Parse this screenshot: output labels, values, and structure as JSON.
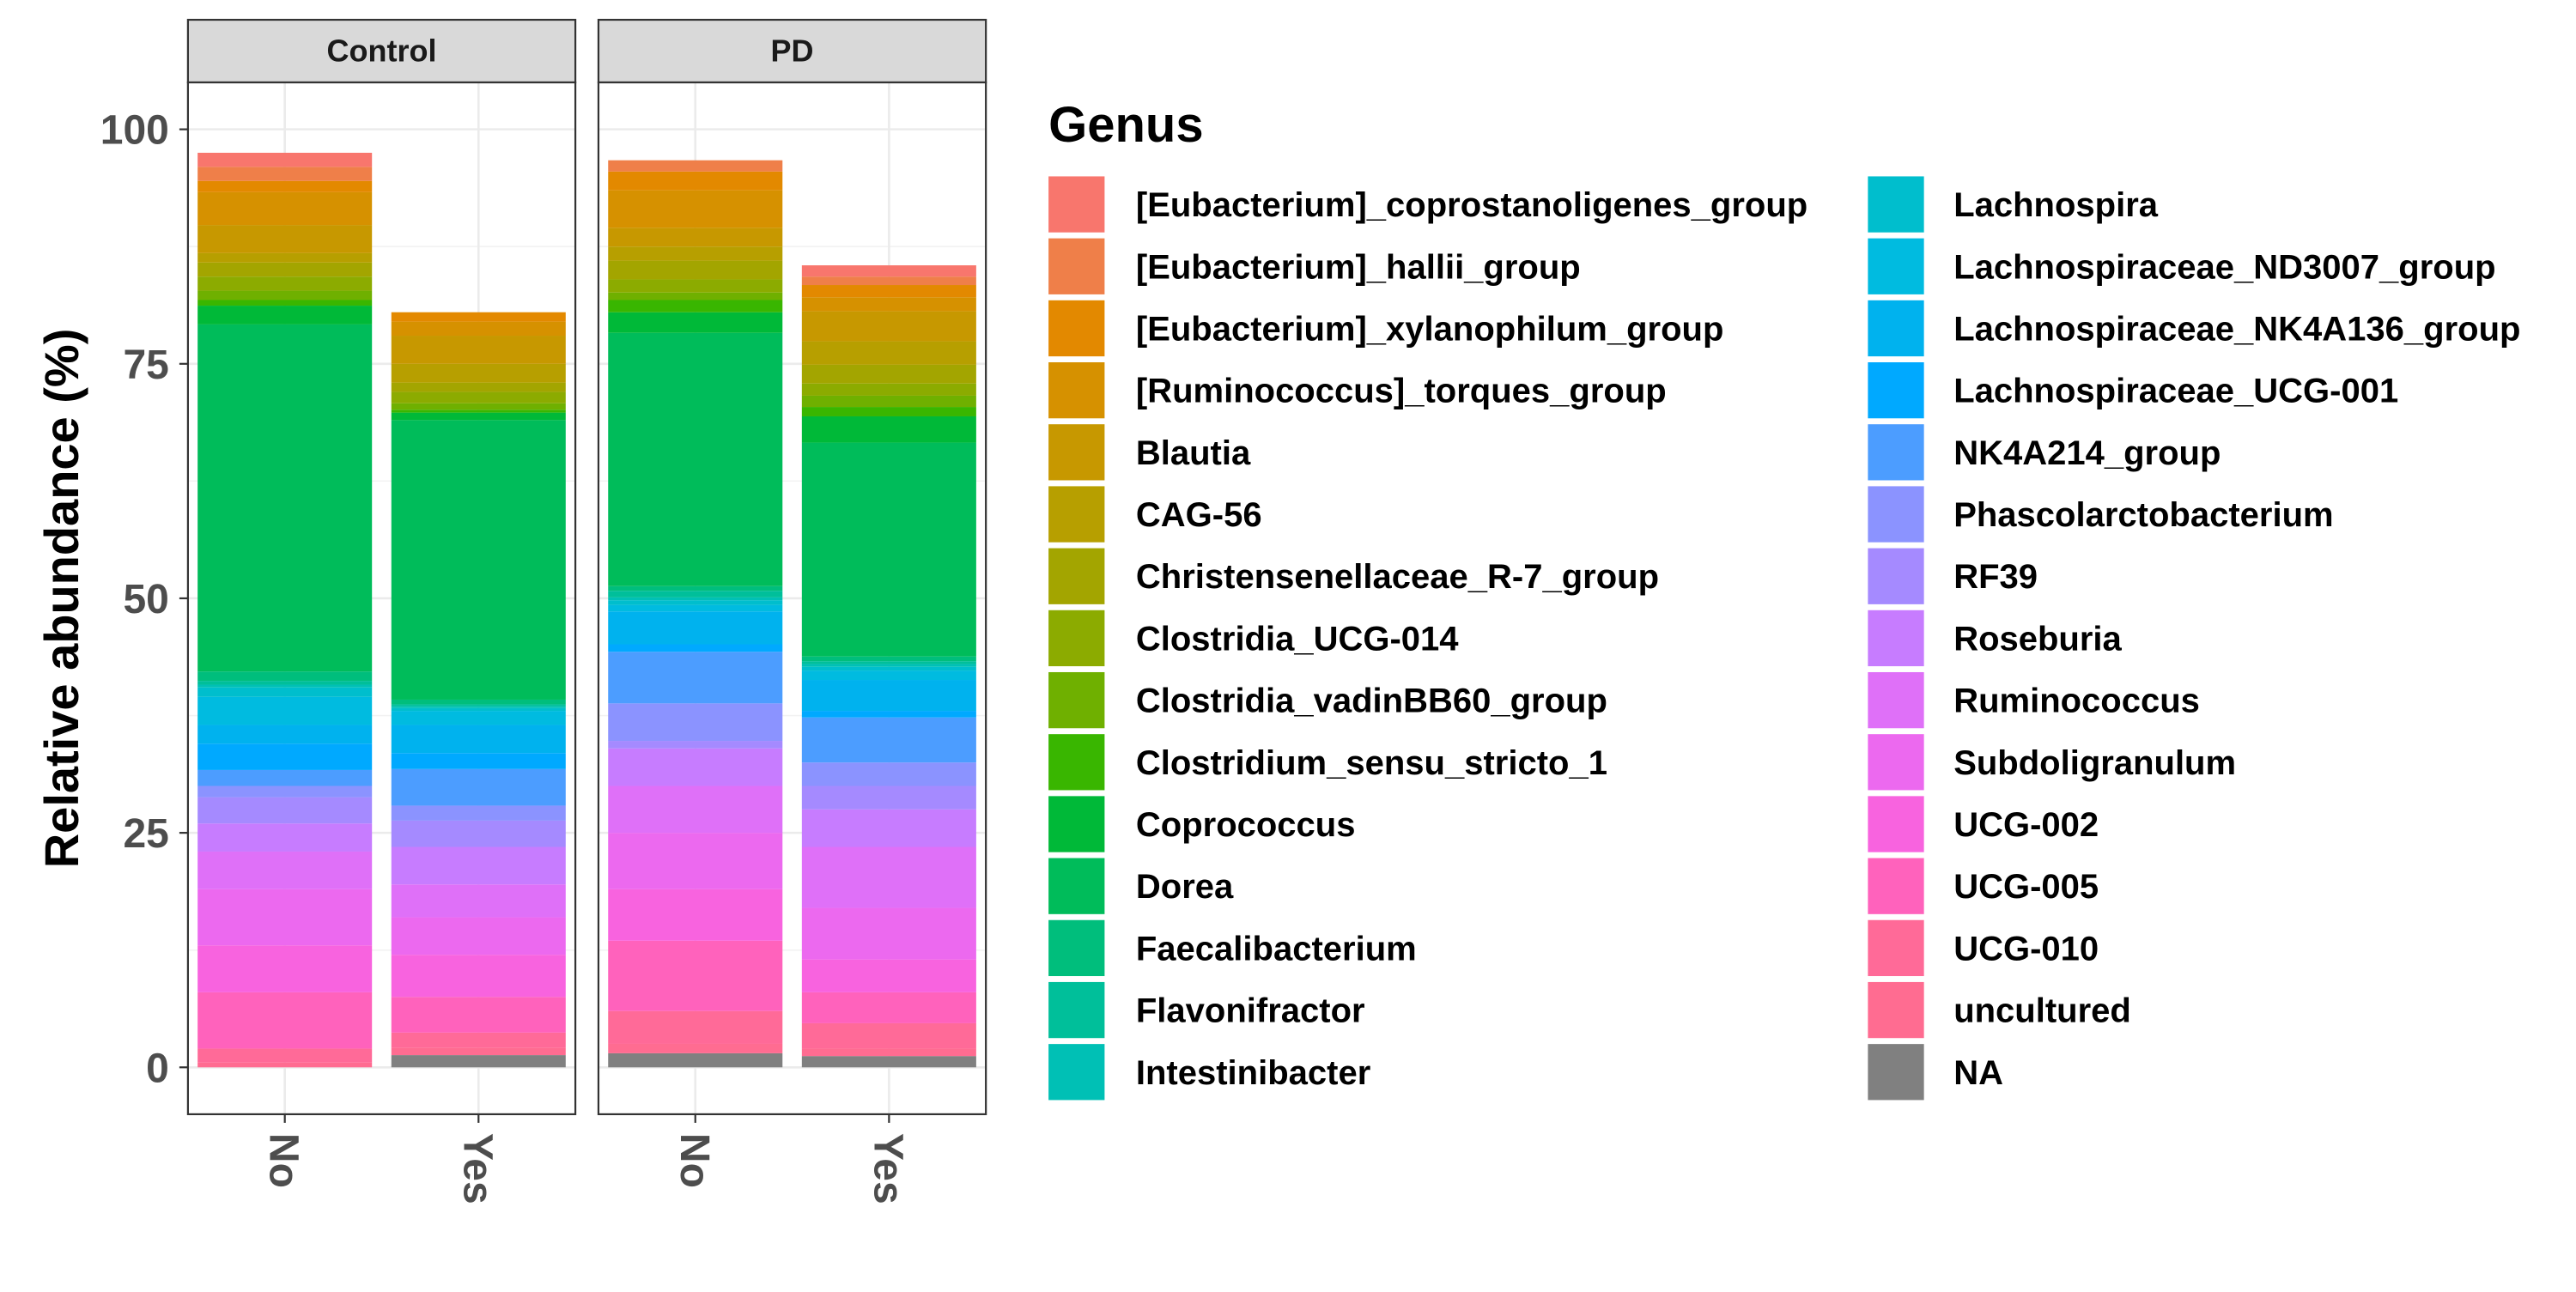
{
  "chart_data": {
    "type": "bar",
    "stacked": true,
    "ylabel": "Relative abundance (%)",
    "xlabel": "",
    "ylim": [
      0,
      105
    ],
    "yticks": [
      0,
      25,
      50,
      75,
      100
    ],
    "grid": true,
    "legend_position": "right",
    "legend_title": "Genus",
    "categories": [
      "No",
      "Yes"
    ],
    "facets": [
      {
        "label": "Control",
        "bars": [
          {
            "category": "No",
            "segments": [
              {
                "genus": "NA",
                "value": 0
              },
              {
                "genus": "uncultured",
                "value": 0.5
              },
              {
                "genus": "UCG-010",
                "value": 1.5
              },
              {
                "genus": "UCG-005",
                "value": 6.0
              },
              {
                "genus": "UCG-002",
                "value": 5.0
              },
              {
                "genus": "Subdoligranulum",
                "value": 6.0
              },
              {
                "genus": "Ruminococcus",
                "value": 4.0
              },
              {
                "genus": "Roseburia",
                "value": 3.0
              },
              {
                "genus": "RF39",
                "value": 2.8
              },
              {
                "genus": "Phascolarctobacterium",
                "value": 1.2
              },
              {
                "genus": "NK4A214_group",
                "value": 1.7
              },
              {
                "genus": "Lachnospiraceae_UCG-001",
                "value": 2.8
              },
              {
                "genus": "Lachnospiraceae_NK4A136_group",
                "value": 2.0
              },
              {
                "genus": "Lachnospiraceae_ND3007_group",
                "value": 3.0
              },
              {
                "genus": "Lachnospira",
                "value": 1.0
              },
              {
                "genus": "Intestinibacter",
                "value": 0.3
              },
              {
                "genus": "Flavonifractor",
                "value": 0.4
              },
              {
                "genus": "Faecalibacterium",
                "value": 1.0
              },
              {
                "genus": "Dorea",
                "value": 37.0
              },
              {
                "genus": "Coprococcus",
                "value": 2.0
              },
              {
                "genus": "Clostridium_sensu_stricto_1",
                "value": 0.6
              },
              {
                "genus": "Clostridia_vadinBB60_group",
                "value": 1.0
              },
              {
                "genus": "Clostridia_UCG-014",
                "value": 1.5
              },
              {
                "genus": "Christensenellaceae_R-7_group",
                "value": 1.5
              },
              {
                "genus": "CAG-56",
                "value": 1.0
              },
              {
                "genus": "Blautia",
                "value": 3.0
              },
              {
                "genus": "[Ruminococcus]_torques_group",
                "value": 3.5
              },
              {
                "genus": "[Eubacterium]_xylanophilum_group",
                "value": 1.2
              },
              {
                "genus": "[Eubacterium]_hallii_group",
                "value": 1.5
              },
              {
                "genus": "[Eubacterium]_coprostanoligenes_group",
                "value": 1.5
              }
            ]
          },
          {
            "category": "Yes",
            "segments": [
              {
                "genus": "NA",
                "value": 1.3
              },
              {
                "genus": "uncultured",
                "value": 0.8
              },
              {
                "genus": "UCG-010",
                "value": 1.6
              },
              {
                "genus": "UCG-005",
                "value": 3.8
              },
              {
                "genus": "UCG-002",
                "value": 4.5
              },
              {
                "genus": "Subdoligranulum",
                "value": 4.0
              },
              {
                "genus": "Ruminococcus",
                "value": 3.5
              },
              {
                "genus": "Roseburia",
                "value": 4.0
              },
              {
                "genus": "RF39",
                "value": 2.8
              },
              {
                "genus": "Phascolarctobacterium",
                "value": 1.6
              },
              {
                "genus": "NK4A214_group",
                "value": 3.9
              },
              {
                "genus": "Lachnospiraceae_UCG-001",
                "value": 1.7
              },
              {
                "genus": "Lachnospiraceae_NK4A136_group",
                "value": 3.0
              },
              {
                "genus": "Lachnospiraceae_ND3007_group",
                "value": 1.5
              },
              {
                "genus": "Lachnospira",
                "value": 0.3
              },
              {
                "genus": "Intestinibacter",
                "value": 0.2
              },
              {
                "genus": "Flavonifractor",
                "value": 0.2
              },
              {
                "genus": "Faecalibacterium",
                "value": 0.5
              },
              {
                "genus": "Dorea",
                "value": 29.8
              },
              {
                "genus": "Coprococcus",
                "value": 0.8
              },
              {
                "genus": "Clostridium_sensu_stricto_1",
                "value": 0.3
              },
              {
                "genus": "Clostridia_vadinBB60_group",
                "value": 0.7
              },
              {
                "genus": "Clostridia_UCG-014",
                "value": 1.2
              },
              {
                "genus": "Christensenellaceae_R-7_group",
                "value": 1.0
              },
              {
                "genus": "CAG-56",
                "value": 2.0
              },
              {
                "genus": "Blautia",
                "value": 3.0
              },
              {
                "genus": "[Ruminococcus]_torques_group",
                "value": 1.5
              },
              {
                "genus": "[Eubacterium]_xylanophilum_group",
                "value": 1.0
              },
              {
                "genus": "[Eubacterium]_hallii_group",
                "value": 0
              },
              {
                "genus": "[Eubacterium]_coprostanoligenes_group",
                "value": 0
              }
            ]
          }
        ]
      },
      {
        "label": "PD",
        "bars": [
          {
            "category": "No",
            "segments": [
              {
                "genus": "NA",
                "value": 1.5
              },
              {
                "genus": "uncultured",
                "value": 1.0
              },
              {
                "genus": "UCG-010",
                "value": 3.5
              },
              {
                "genus": "UCG-005",
                "value": 7.5
              },
              {
                "genus": "UCG-002",
                "value": 5.5
              },
              {
                "genus": "Subdoligranulum",
                "value": 6.0
              },
              {
                "genus": "Ruminococcus",
                "value": 5.0
              },
              {
                "genus": "Roseburia",
                "value": 4.0
              },
              {
                "genus": "RF39",
                "value": 0.8
              },
              {
                "genus": "Phascolarctobacterium",
                "value": 4.0
              },
              {
                "genus": "NK4A214_group",
                "value": 5.5
              },
              {
                "genus": "Lachnospiraceae_UCG-001",
                "value": 0.8
              },
              {
                "genus": "Lachnospiraceae_NK4A136_group",
                "value": 3.5
              },
              {
                "genus": "Lachnospiraceae_ND3007_group",
                "value": 0.7
              },
              {
                "genus": "Lachnospira",
                "value": 0.5
              },
              {
                "genus": "Intestinibacter",
                "value": 0.3
              },
              {
                "genus": "Flavonifractor",
                "value": 0.7
              },
              {
                "genus": "Faecalibacterium",
                "value": 0.5
              },
              {
                "genus": "Dorea",
                "value": 27.0
              },
              {
                "genus": "Coprococcus",
                "value": 2.2
              },
              {
                "genus": "Clostridium_sensu_stricto_1",
                "value": 1.3
              },
              {
                "genus": "Clostridia_vadinBB60_group",
                "value": 0.8
              },
              {
                "genus": "Clostridia_UCG-014",
                "value": 1.4
              },
              {
                "genus": "Christensenellaceae_R-7_group",
                "value": 2.0
              },
              {
                "genus": "CAG-56",
                "value": 1.5
              },
              {
                "genus": "Blautia",
                "value": 2.0
              },
              {
                "genus": "[Ruminococcus]_torques_group",
                "value": 4.0
              },
              {
                "genus": "[Eubacterium]_xylanophilum_group",
                "value": 2.0
              },
              {
                "genus": "[Eubacterium]_hallii_group",
                "value": 1.2
              },
              {
                "genus": "[Eubacterium]_coprostanoligenes_group",
                "value": 0
              }
            ]
          },
          {
            "category": "Yes",
            "segments": [
              {
                "genus": "NA",
                "value": 1.2
              },
              {
                "genus": "uncultured",
                "value": 0.8
              },
              {
                "genus": "UCG-010",
                "value": 2.7
              },
              {
                "genus": "UCG-005",
                "value": 3.3
              },
              {
                "genus": "UCG-002",
                "value": 3.5
              },
              {
                "genus": "Subdoligranulum",
                "value": 5.5
              },
              {
                "genus": "Ruminococcus",
                "value": 6.5
              },
              {
                "genus": "Roseburia",
                "value": 4.0
              },
              {
                "genus": "RF39",
                "value": 2.5
              },
              {
                "genus": "Phascolarctobacterium",
                "value": 2.5
              },
              {
                "genus": "NK4A214_group",
                "value": 4.8
              },
              {
                "genus": "Lachnospiraceae_UCG-001",
                "value": 0.7
              },
              {
                "genus": "Lachnospiraceae_NK4A136_group",
                "value": 3.3
              },
              {
                "genus": "Lachnospiraceae_ND3007_group",
                "value": 1.0
              },
              {
                "genus": "Lachnospira",
                "value": 0.4
              },
              {
                "genus": "Intestinibacter",
                "value": 0.3
              },
              {
                "genus": "Flavonifractor",
                "value": 0.3
              },
              {
                "genus": "Faecalibacterium",
                "value": 0.5
              },
              {
                "genus": "Dorea",
                "value": 22.8
              },
              {
                "genus": "Coprococcus",
                "value": 2.8
              },
              {
                "genus": "Clostridium_sensu_stricto_1",
                "value": 1.0
              },
              {
                "genus": "Clostridia_vadinBB60_group",
                "value": 1.2
              },
              {
                "genus": "Clostridia_UCG-014",
                "value": 1.3
              },
              {
                "genus": "Christensenellaceae_R-7_group",
                "value": 2.0
              },
              {
                "genus": "CAG-56",
                "value": 2.5
              },
              {
                "genus": "Blautia",
                "value": 3.2
              },
              {
                "genus": "[Ruminococcus]_torques_group",
                "value": 1.5
              },
              {
                "genus": "[Eubacterium]_xylanophilum_group",
                "value": 1.3
              },
              {
                "genus": "[Eubacterium]_hallii_group",
                "value": 0.9
              },
              {
                "genus": "[Eubacterium]_coprostanoligenes_group",
                "value": 1.2
              }
            ]
          }
        ]
      }
    ],
    "legend": [
      {
        "genus": "[Eubacterium]_coprostanoligenes_group",
        "color": "#F8766D"
      },
      {
        "genus": "[Eubacterium]_hallii_group",
        "color": "#EF7F49"
      },
      {
        "genus": "[Eubacterium]_xylanophilum_group",
        "color": "#E38900"
      },
      {
        "genus": "[Ruminococcus]_torques_group",
        "color": "#D69100"
      },
      {
        "genus": "Blautia",
        "color": "#C79800"
      },
      {
        "genus": "CAG-56",
        "color": "#B79F00"
      },
      {
        "genus": "Christensenellaceae_R-7_group",
        "color": "#A3A500"
      },
      {
        "genus": "Clostridia_UCG-014",
        "color": "#8CAB00"
      },
      {
        "genus": "Clostridia_vadinBB60_group",
        "color": "#6FB000"
      },
      {
        "genus": "Clostridium_sensu_stricto_1",
        "color": "#39B600"
      },
      {
        "genus": "Coprococcus",
        "color": "#00B938"
      },
      {
        "genus": "Dorea",
        "color": "#00BC5A"
      },
      {
        "genus": "Faecalibacterium",
        "color": "#00BE7C"
      },
      {
        "genus": "Flavonifractor",
        "color": "#00BF9A"
      },
      {
        "genus": "Intestinibacter",
        "color": "#00C0B5"
      },
      {
        "genus": "Lachnospira",
        "color": "#00BECD"
      },
      {
        "genus": "Lachnospiraceae_ND3007_group",
        "color": "#00BBE0"
      },
      {
        "genus": "Lachnospiraceae_NK4A136_group",
        "color": "#00B2EE"
      },
      {
        "genus": "Lachnospiraceae_UCG-001",
        "color": "#00A9FF"
      },
      {
        "genus": "NK4A214_group",
        "color": "#4C9DFF"
      },
      {
        "genus": "Phascolarctobacterium",
        "color": "#8B93FF"
      },
      {
        "genus": "RF39",
        "color": "#A58AFF"
      },
      {
        "genus": "Roseburia",
        "color": "#C77CFF"
      },
      {
        "genus": "Ruminococcus",
        "color": "#DF70F8"
      },
      {
        "genus": "Subdoligranulum",
        "color": "#EC69EF"
      },
      {
        "genus": "UCG-002",
        "color": "#F863DF"
      },
      {
        "genus": "UCG-005",
        "color": "#FF62BC"
      },
      {
        "genus": "UCG-010",
        "color": "#FF6A98"
      },
      {
        "genus": "uncultured",
        "color": "#FF6C91"
      },
      {
        "genus": "NA",
        "color": "#808080"
      }
    ]
  }
}
